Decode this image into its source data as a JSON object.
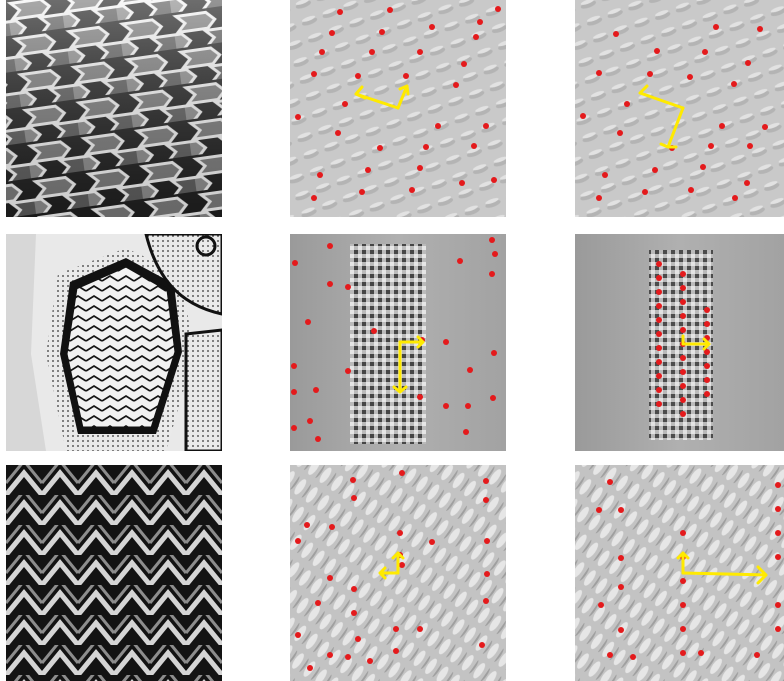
{
  "figure": {
    "rows": [
      {
        "texture": "hexagonal-brick-tiles",
        "column_labels": []
      },
      {
        "texture": "zigzag-patterned-shield",
        "column_labels": []
      },
      {
        "texture": "herringbone-weave",
        "column_labels": []
      }
    ],
    "colors": {
      "lattice_point": "#e41a1c",
      "basis_vector": "#ffea00",
      "autocorrelation_bg": "#c8c8c8"
    }
  }
}
